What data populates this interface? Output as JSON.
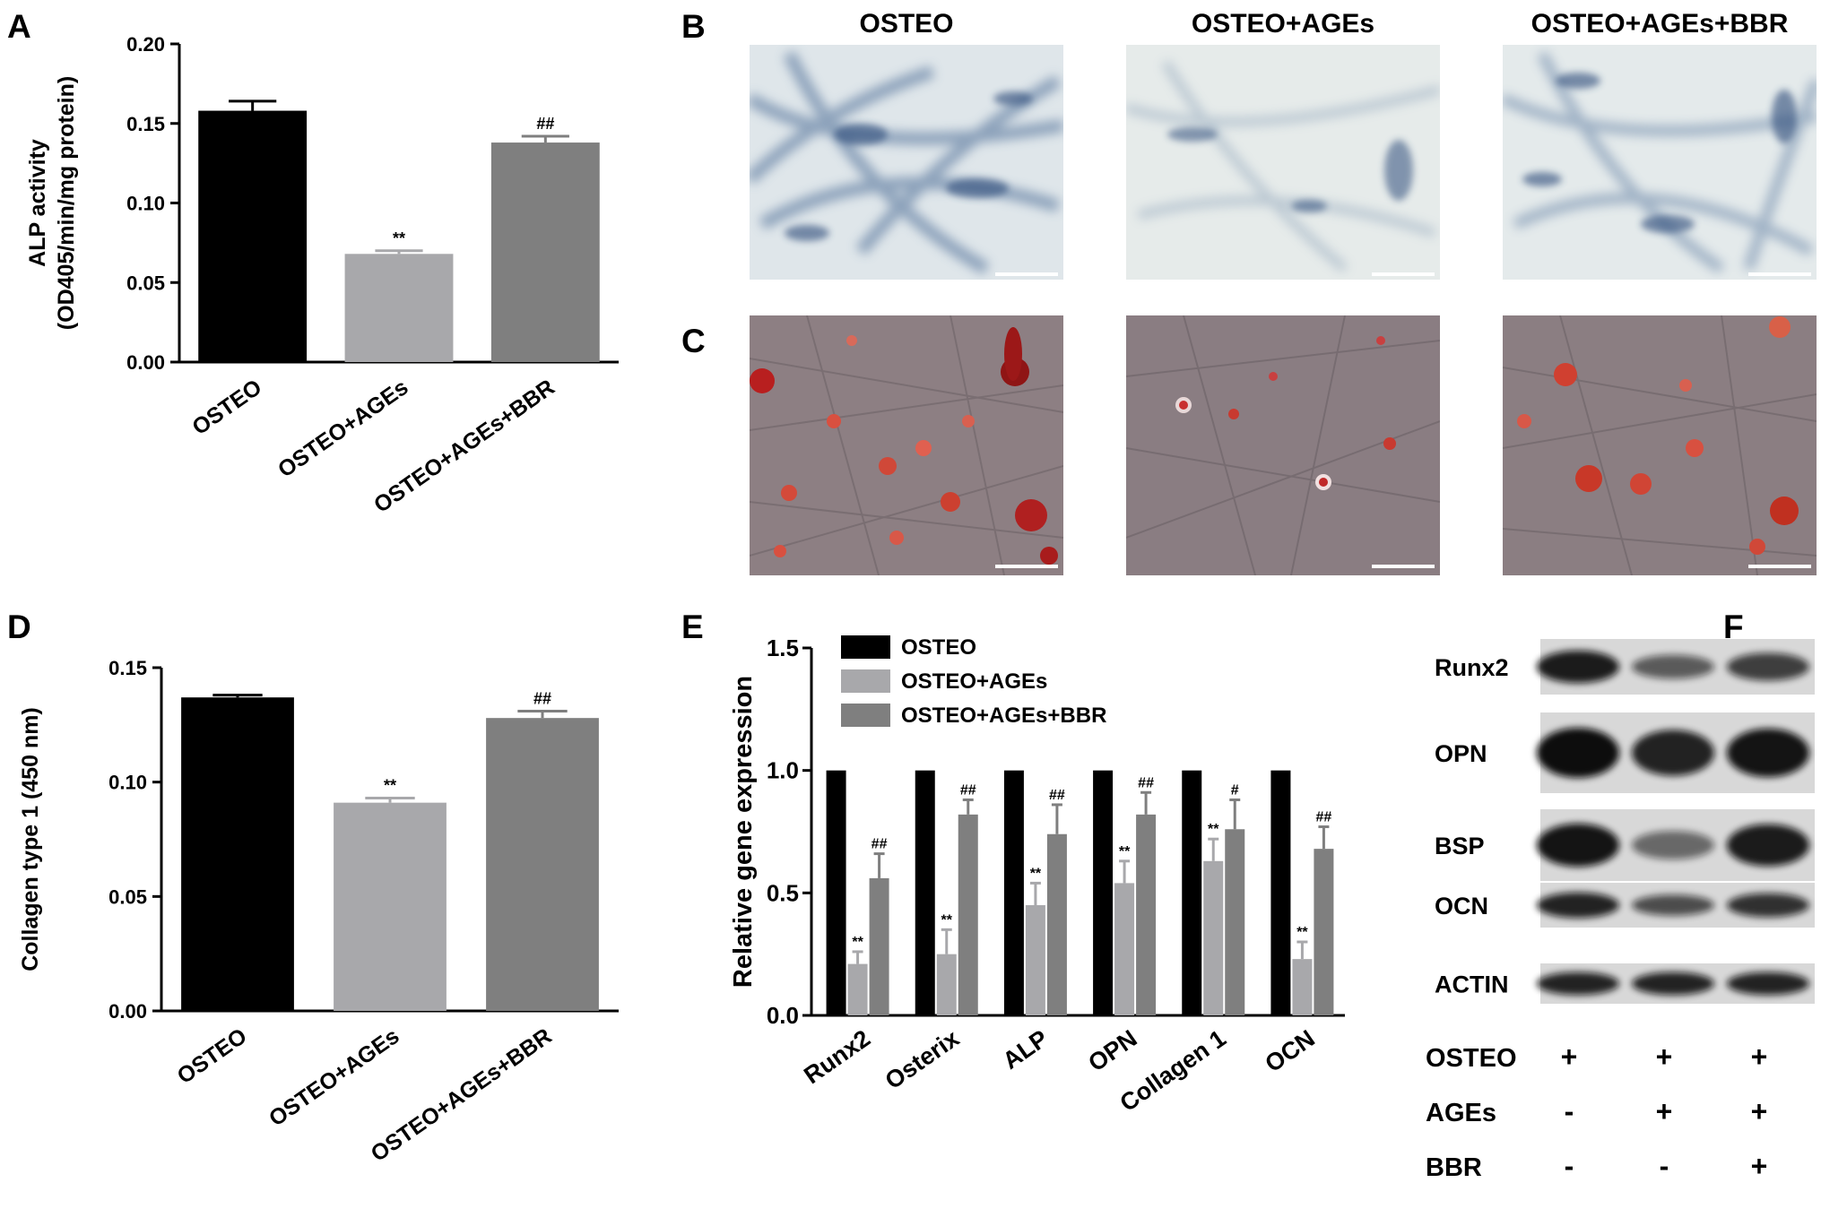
{
  "panel_labels": {
    "a": "A",
    "b": "B",
    "c": "C",
    "d": "D",
    "e": "E",
    "f": "F"
  },
  "image_headers": [
    "OSTEO",
    "OSTEO+AGEs",
    "OSTEO+AGEs+BBR"
  ],
  "colors": {
    "osteo": "#000000",
    "ages": "#a8a8ab",
    "bbr": "#7f7f7f",
    "alp_stain": "#3a5a86",
    "ars_stain": "#c8302a"
  },
  "chart_data": [
    {
      "id": "A",
      "type": "bar",
      "categories": [
        "OSTEO",
        "OSTEO+AGEs",
        "OSTEO+AGEs+BBR"
      ],
      "values": [
        0.158,
        0.068,
        0.138
      ],
      "errors": [
        0.006,
        0.002,
        0.004
      ],
      "significance": [
        "",
        "**",
        "##"
      ],
      "ylabel_line1": "ALP activity",
      "ylabel_line2": "(OD405/min/mg protein)",
      "ylim": [
        0,
        0.2
      ],
      "yticks": [
        "0.00",
        "0.05",
        "0.10",
        "0.15",
        "0.20"
      ],
      "grid": false
    },
    {
      "id": "D",
      "type": "bar",
      "categories": [
        "OSTEO",
        "OSTEO+AGEs",
        "OSTEO+AGEs+BBR"
      ],
      "values": [
        0.137,
        0.091,
        0.128
      ],
      "errors": [
        0.001,
        0.002,
        0.003
      ],
      "significance": [
        "",
        "**",
        "##"
      ],
      "ylabel": "Collagen type 1 (450 nm)",
      "ylim": [
        0,
        0.15
      ],
      "yticks": [
        "0.00",
        "0.05",
        "0.10",
        "0.15"
      ],
      "grid": false
    },
    {
      "id": "E",
      "type": "bar",
      "categories": [
        "Runx2",
        "Osterix",
        "ALP",
        "OPN",
        "Collagen 1",
        "OCN"
      ],
      "series": [
        {
          "name": "OSTEO",
          "values": [
            1.0,
            1.0,
            1.0,
            1.0,
            1.0,
            1.0
          ],
          "errors": [
            0,
            0,
            0,
            0,
            0,
            0
          ],
          "significance": [
            "",
            "",
            "",
            "",
            "",
            ""
          ]
        },
        {
          "name": "OSTEO+AGEs",
          "values": [
            0.21,
            0.25,
            0.45,
            0.54,
            0.63,
            0.23
          ],
          "errors": [
            0.05,
            0.1,
            0.09,
            0.09,
            0.09,
            0.07
          ],
          "significance": [
            "**",
            "**",
            "**",
            "**",
            "**",
            "**"
          ]
        },
        {
          "name": "OSTEO+AGEs+BBR",
          "values": [
            0.56,
            0.82,
            0.74,
            0.82,
            0.76,
            0.68
          ],
          "errors": [
            0.1,
            0.06,
            0.12,
            0.09,
            0.12,
            0.09
          ],
          "significance": [
            "##",
            "##",
            "##",
            "##",
            "#",
            "##"
          ]
        }
      ],
      "ylabel": "Relative gene expression",
      "ylim": [
        0,
        1.5
      ],
      "yticks": [
        "0.0",
        "0.5",
        "1.0",
        "1.5"
      ],
      "legend": "top-left",
      "grid": false
    }
  ],
  "western_blot": {
    "labels": [
      "Runx2",
      "OPN",
      "BSP",
      "OCN",
      "ACTIN"
    ],
    "band_intensity": [
      [
        0.9,
        0.45,
        0.65
      ],
      [
        1.0,
        0.85,
        0.95
      ],
      [
        0.95,
        0.35,
        0.9
      ],
      [
        0.85,
        0.55,
        0.75
      ],
      [
        0.85,
        0.85,
        0.85
      ]
    ],
    "conditions": [
      {
        "name": "OSTEO",
        "signs": [
          "+",
          "+",
          "+"
        ]
      },
      {
        "name": "AGEs",
        "signs": [
          "-",
          "+",
          "+"
        ]
      },
      {
        "name": "BBR",
        "signs": [
          "-",
          "-",
          "+"
        ]
      }
    ]
  }
}
